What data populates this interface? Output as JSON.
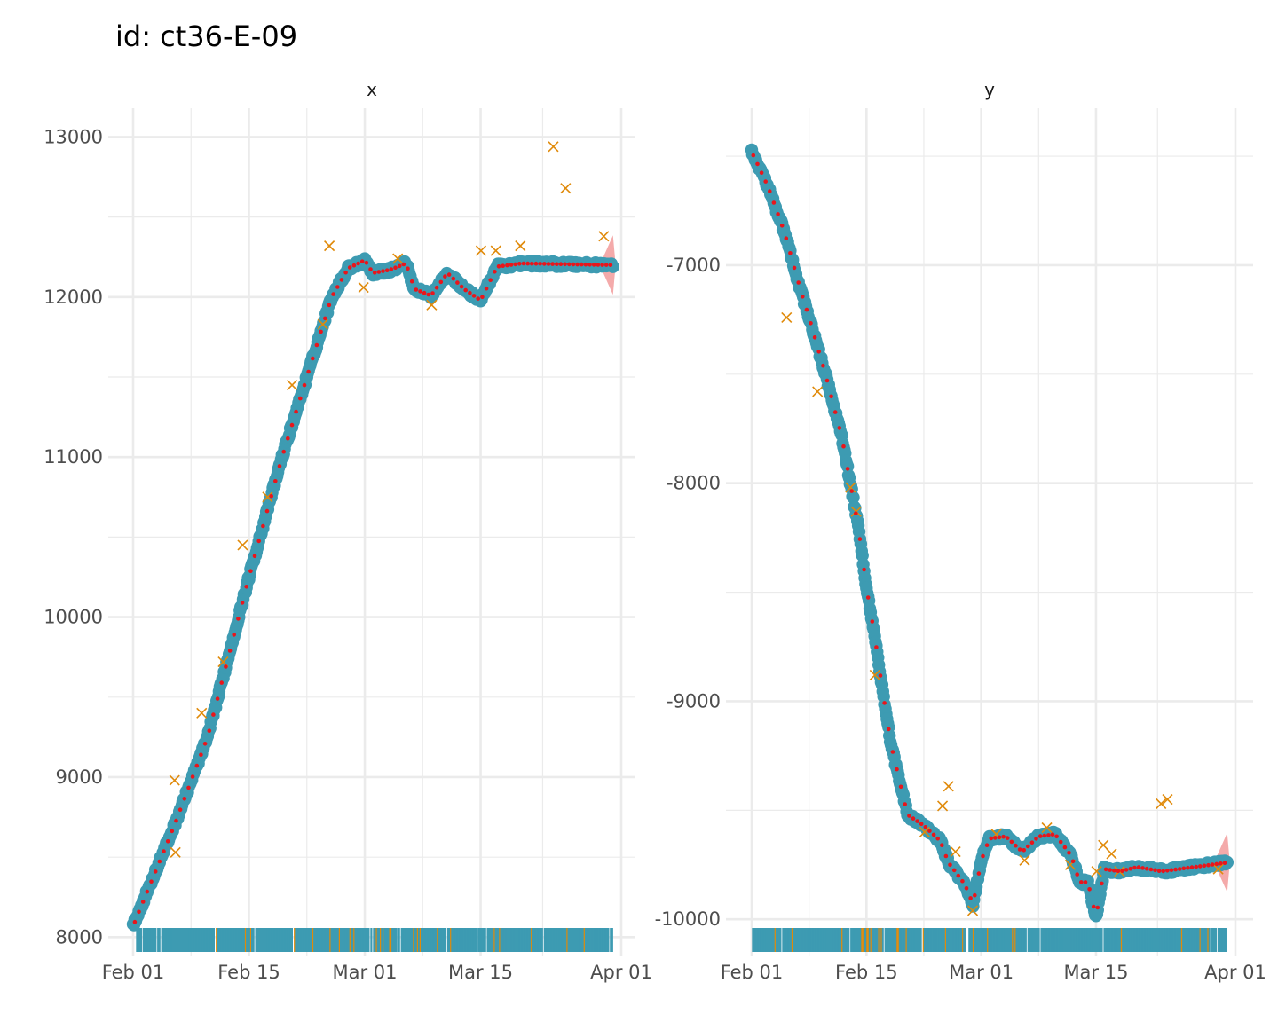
{
  "title": "id: ct36-E-09",
  "colors": {
    "observed": "#3d9bb2",
    "smoothed": "#e8161c",
    "outlier": "#e08a0a",
    "ribbon": "#f29b9b",
    "grid": "#ebebeb"
  },
  "chart_data": [
    {
      "type": "scatter",
      "facet": "x",
      "x_labels": [
        "Feb 01",
        "Feb 15",
        "Mar 01",
        "Mar 15",
        "Apr 01"
      ],
      "y_ticks": [
        8000,
        9000,
        10000,
        11000,
        12000,
        13000
      ],
      "y_range": [
        7880,
        13180
      ],
      "knots": [
        [
          "2023-02-01",
          8070
        ],
        [
          "2023-02-06",
          8700
        ],
        [
          "2023-02-10",
          9250
        ],
        [
          "2023-02-15",
          10250
        ],
        [
          "2023-02-19",
          11000
        ],
        [
          "2023-02-22",
          11500
        ],
        [
          "2023-02-25",
          12000
        ],
        [
          "2023-02-27",
          12180
        ],
        [
          "2023-03-01",
          12230
        ],
        [
          "2023-03-02",
          12150
        ],
        [
          "2023-03-04",
          12170
        ],
        [
          "2023-03-06",
          12210
        ],
        [
          "2023-03-07",
          12050
        ],
        [
          "2023-03-09",
          12010
        ],
        [
          "2023-03-11",
          12150
        ],
        [
          "2023-03-13",
          12050
        ],
        [
          "2023-03-15",
          11980
        ],
        [
          "2023-03-17",
          12190
        ],
        [
          "2023-03-20",
          12210
        ],
        [
          "2023-03-31",
          12200
        ]
      ],
      "outliers": [
        [
          "2023-02-06",
          8980
        ],
        [
          "2023-02-06",
          8530
        ],
        [
          "2023-02-09",
          9400
        ],
        [
          "2023-02-12",
          9720
        ],
        [
          "2023-02-14",
          10450
        ],
        [
          "2023-02-17",
          10750
        ],
        [
          "2023-02-20",
          11450
        ],
        [
          "2023-02-24",
          11830
        ],
        [
          "2023-02-25",
          12320
        ],
        [
          "2023-03-01",
          12060
        ],
        [
          "2023-03-05",
          12240
        ],
        [
          "2023-03-09",
          11950
        ],
        [
          "2023-03-15",
          12290
        ],
        [
          "2023-03-17",
          12290
        ],
        [
          "2023-03-20",
          12320
        ],
        [
          "2023-03-24",
          12940
        ],
        [
          "2023-03-25",
          12680
        ],
        [
          "2023-03-30",
          12380
        ]
      ]
    },
    {
      "type": "scatter",
      "facet": "y",
      "x_labels": [
        "Feb 01",
        "Feb 15",
        "Mar 01",
        "Mar 15",
        "Apr 01"
      ],
      "y_ticks": [
        -10000,
        -9000,
        -8000,
        -7000
      ],
      "y_range": [
        -10170,
        -6280
      ],
      "knots": [
        [
          "2023-02-01",
          -6480
        ],
        [
          "2023-02-03",
          -6640
        ],
        [
          "2023-02-05",
          -6850
        ],
        [
          "2023-02-07",
          -7120
        ],
        [
          "2023-02-08",
          -7240
        ],
        [
          "2023-02-10",
          -7500
        ],
        [
          "2023-02-12",
          -7790
        ],
        [
          "2023-02-14",
          -8200
        ],
        [
          "2023-02-15",
          -8480
        ],
        [
          "2023-02-16",
          -8700
        ],
        [
          "2023-02-17",
          -8960
        ],
        [
          "2023-02-18",
          -9200
        ],
        [
          "2023-02-19",
          -9360
        ],
        [
          "2023-02-20",
          -9520
        ],
        [
          "2023-02-22",
          -9570
        ],
        [
          "2023-02-24",
          -9640
        ],
        [
          "2023-02-25",
          -9740
        ],
        [
          "2023-02-27",
          -9840
        ],
        [
          "2023-02-28",
          -9930
        ],
        [
          "2023-03-01",
          -9730
        ],
        [
          "2023-03-02",
          -9630
        ],
        [
          "2023-03-04",
          -9620
        ],
        [
          "2023-03-06",
          -9690
        ],
        [
          "2023-03-08",
          -9620
        ],
        [
          "2023-03-10",
          -9610
        ],
        [
          "2023-03-12",
          -9710
        ],
        [
          "2023-03-13",
          -9830
        ],
        [
          "2023-03-14",
          -9830
        ],
        [
          "2023-03-15",
          -9990
        ],
        [
          "2023-03-16",
          -9770
        ],
        [
          "2023-03-18",
          -9780
        ],
        [
          "2023-03-20",
          -9760
        ],
        [
          "2023-03-23",
          -9780
        ],
        [
          "2023-03-31",
          -9740
        ]
      ],
      "outliers": [
        [
          "2023-02-05",
          -7240
        ],
        [
          "2023-02-09",
          -7580
        ],
        [
          "2023-02-13",
          -8020
        ],
        [
          "2023-02-14",
          -8130
        ],
        [
          "2023-02-16",
          -8880
        ],
        [
          "2023-02-22",
          -9600
        ],
        [
          "2023-02-24",
          -9480
        ],
        [
          "2023-02-25",
          -9390
        ],
        [
          "2023-02-26",
          -9690
        ],
        [
          "2023-02-28",
          -9960
        ],
        [
          "2023-03-03",
          -9610
        ],
        [
          "2023-03-06",
          -9730
        ],
        [
          "2023-03-09",
          -9580
        ],
        [
          "2023-03-12",
          -9750
        ],
        [
          "2023-03-15",
          -9780
        ],
        [
          "2023-03-16",
          -9660
        ],
        [
          "2023-03-17",
          -9700
        ],
        [
          "2023-03-18",
          -9780
        ],
        [
          "2023-03-23",
          -9470
        ],
        [
          "2023-03-24",
          -9450
        ],
        [
          "2023-03-30",
          -9770
        ]
      ]
    }
  ]
}
